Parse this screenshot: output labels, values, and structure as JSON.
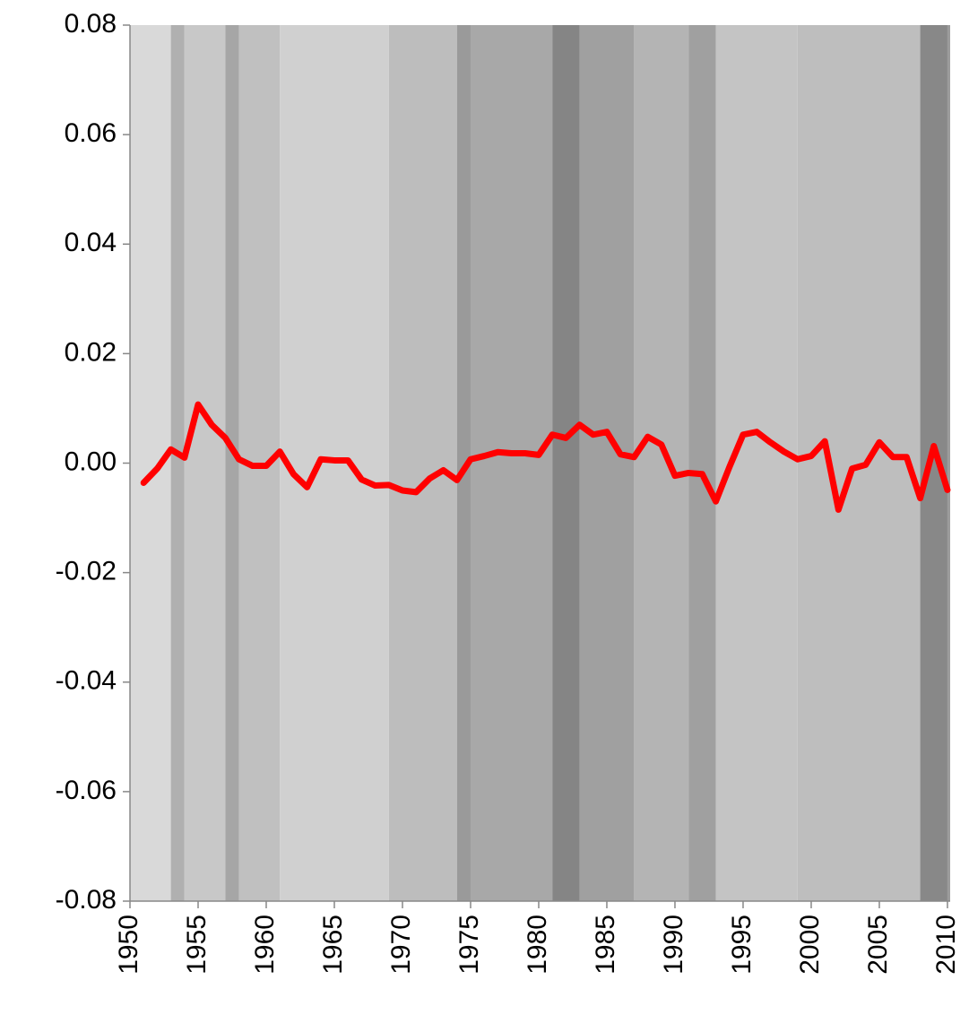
{
  "chart_data": {
    "type": "line",
    "x": [
      1951,
      1952,
      1953,
      1954,
      1955,
      1956,
      1957,
      1958,
      1959,
      1960,
      1961,
      1962,
      1963,
      1964,
      1965,
      1966,
      1967,
      1968,
      1969,
      1970,
      1971,
      1972,
      1973,
      1974,
      1975,
      1976,
      1977,
      1978,
      1979,
      1980,
      1981,
      1982,
      1983,
      1984,
      1985,
      1986,
      1987,
      1988,
      1989,
      1990,
      1991,
      1992,
      1993,
      1994,
      1995,
      1996,
      1997,
      1998,
      1999,
      2000,
      2001,
      2002,
      2003,
      2004,
      2005,
      2006,
      2007,
      2008,
      2009,
      2010
    ],
    "series": [
      {
        "color": "#ff0000",
        "values": [
          -0.0036,
          -0.001,
          0.0025,
          0.001,
          0.0107,
          0.007,
          0.0046,
          0.0007,
          -0.0005,
          -0.0005,
          0.0021,
          -0.002,
          -0.0044,
          0.0007,
          0.0005,
          0.0005,
          -0.003,
          -0.0041,
          -0.004,
          -0.005,
          -0.0053,
          -0.0028,
          -0.0013,
          -0.0031,
          0.0007,
          0.0013,
          0.002,
          0.0018,
          0.0018,
          0.0015,
          0.0052,
          0.0046,
          0.007,
          0.0052,
          0.0057,
          0.0016,
          0.0011,
          0.0048,
          0.0034,
          -0.0023,
          -0.0018,
          -0.002,
          -0.007,
          -0.0007,
          0.0052,
          0.0057,
          0.0038,
          0.0021,
          0.0007,
          0.0013,
          0.004,
          -0.0085,
          -0.001,
          -0.0003,
          0.0038,
          0.0011,
          0.0011,
          -0.0064,
          0.0031,
          -0.0049
        ]
      }
    ],
    "xlim": [
      1950,
      2010.2
    ],
    "xticks": [
      1950,
      1955,
      1960,
      1965,
      1970,
      1975,
      1980,
      1985,
      1990,
      1995,
      2000,
      2005,
      2010
    ],
    "ylim": [
      -0.08,
      0.08
    ],
    "yticks": [
      {
        "value": -0.08,
        "label": "-0.08"
      },
      {
        "value": -0.06,
        "label": "-0.06"
      },
      {
        "value": -0.04,
        "label": "-0.04"
      },
      {
        "value": -0.02,
        "label": "-0.02"
      },
      {
        "value": 0,
        "label": "0.00"
      },
      {
        "value": 0.02,
        "label": "0.02"
      },
      {
        "value": 0.04,
        "label": "0.04"
      },
      {
        "value": 0.06,
        "label": "0.06"
      },
      {
        "value": 0.08,
        "label": "0.08"
      }
    ],
    "bands": [
      {
        "start": 1950,
        "end": 1953,
        "color": "#d9d9d9"
      },
      {
        "start": 1953,
        "end": 1954,
        "color": "#b0b0b0"
      },
      {
        "start": 1954,
        "end": 1957,
        "color": "#c8c8c8"
      },
      {
        "start": 1957,
        "end": 1958,
        "color": "#a6a6a6"
      },
      {
        "start": 1958,
        "end": 1961,
        "color": "#c0c0c0"
      },
      {
        "start": 1961,
        "end": 1969,
        "color": "#d0d0d0"
      },
      {
        "start": 1969,
        "end": 1974,
        "color": "#bdbdbd"
      },
      {
        "start": 1974,
        "end": 1975,
        "color": "#9a9a9a"
      },
      {
        "start": 1975,
        "end": 1981,
        "color": "#a8a8a8"
      },
      {
        "start": 1981,
        "end": 1983,
        "color": "#858585"
      },
      {
        "start": 1983,
        "end": 1987,
        "color": "#a0a0a0"
      },
      {
        "start": 1987,
        "end": 1991,
        "color": "#b4b4b4"
      },
      {
        "start": 1991,
        "end": 1993,
        "color": "#a0a0a0"
      },
      {
        "start": 1993,
        "end": 1999,
        "color": "#c4c4c4"
      },
      {
        "start": 1999,
        "end": 2008,
        "color": "#bebebe"
      },
      {
        "start": 2008,
        "end": 2010,
        "color": "#888888"
      },
      {
        "start": 2010,
        "end": 2010.2,
        "color": "#9c9c9c"
      }
    ]
  }
}
